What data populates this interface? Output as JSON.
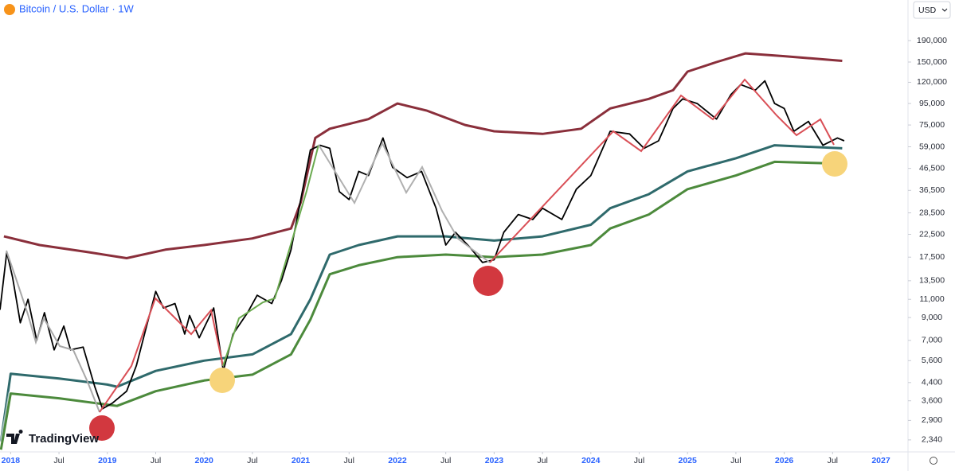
{
  "chart_data": {
    "type": "line",
    "title": "Bitcoin / U.S. Dollar · 1W",
    "currency": "USD",
    "watermark": "TradingView",
    "log_y": true,
    "grid": false,
    "xlim": [
      2017.89,
      2027.28
    ],
    "ylim": [
      2050,
      297000
    ],
    "xticks": [
      {
        "value": 2018,
        "label": "2018"
      },
      {
        "value": 2018.5,
        "label": "Jul"
      },
      {
        "value": 2019,
        "label": "2019"
      },
      {
        "value": 2019.5,
        "label": "Jul"
      },
      {
        "value": 2020,
        "label": "2020"
      },
      {
        "value": 2020.5,
        "label": "Jul"
      },
      {
        "value": 2021,
        "label": "2021"
      },
      {
        "value": 2021.5,
        "label": "Jul"
      },
      {
        "value": 2022,
        "label": "2022"
      },
      {
        "value": 2022.5,
        "label": "Jul"
      },
      {
        "value": 2023,
        "label": "2023"
      },
      {
        "value": 2023.5,
        "label": "Jul"
      },
      {
        "value": 2024,
        "label": "2024"
      },
      {
        "value": 2024.5,
        "label": "Jul"
      },
      {
        "value": 2025,
        "label": "2025"
      },
      {
        "value": 2025.5,
        "label": "Jul"
      },
      {
        "value": 2026,
        "label": "2026"
      },
      {
        "value": 2026.5,
        "label": "Jul"
      },
      {
        "value": 2027,
        "label": "2027"
      }
    ],
    "yticks": [
      {
        "value": 2340,
        "label": "2,340"
      },
      {
        "value": 2900,
        "label": "2,900"
      },
      {
        "value": 3600,
        "label": "3,600"
      },
      {
        "value": 4400,
        "label": "4,400"
      },
      {
        "value": 5600,
        "label": "5,600"
      },
      {
        "value": 7000,
        "label": "7,000"
      },
      {
        "value": 9000,
        "label": "9,000"
      },
      {
        "value": 11000,
        "label": "11,000"
      },
      {
        "value": 13500,
        "label": "13,500"
      },
      {
        "value": 17500,
        "label": "17,500"
      },
      {
        "value": 22500,
        "label": "22,500"
      },
      {
        "value": 28500,
        "label": "28,500"
      },
      {
        "value": 36500,
        "label": "36,500"
      },
      {
        "value": 46500,
        "label": "46,500"
      },
      {
        "value": 59000,
        "label": "59,000"
      },
      {
        "value": 75000,
        "label": "75,000"
      },
      {
        "value": 95000,
        "label": "95,000"
      },
      {
        "value": 120000,
        "label": "120,000"
      },
      {
        "value": 150000,
        "label": "150,000"
      },
      {
        "value": 190000,
        "label": "190,000"
      }
    ],
    "series": [
      {
        "color": "#8a2f3b",
        "width": 3,
        "x": [
          2017.93,
          2018.3,
          2018.8,
          2019.2,
          2019.6,
          2020.0,
          2020.5,
          2020.9,
          2021.0,
          2021.15,
          2021.3,
          2021.7,
          2022.0,
          2022.3,
          2022.7,
          2023.0,
          2023.5,
          2023.9,
          2024.2,
          2024.6,
          2024.85,
          2025.0,
          2025.3,
          2025.6,
          2026.0,
          2026.6
        ],
        "values": [
          22000,
          20000,
          18500,
          17300,
          19000,
          20000,
          21500,
          24000,
          32000,
          65000,
          72000,
          80000,
          95000,
          88000,
          75000,
          70000,
          68000,
          72000,
          90000,
          100000,
          110000,
          135000,
          150000,
          165000,
          160000,
          152000
        ]
      },
      {
        "color": "#2f6a6c",
        "width": 3,
        "x": [
          2017.9,
          2018.0,
          2018.5,
          2019.0,
          2019.1,
          2019.5,
          2020.0,
          2020.5,
          2020.9,
          2021.1,
          2021.3,
          2021.6,
          2022.0,
          2022.5,
          2023.0,
          2023.5,
          2024.0,
          2024.2,
          2024.6,
          2025.0,
          2025.5,
          2025.9,
          2026.6
        ],
        "values": [
          2300,
          4850,
          4600,
          4300,
          4200,
          5000,
          5600,
          6000,
          7500,
          11000,
          18000,
          20000,
          22000,
          22000,
          21000,
          22000,
          25000,
          30000,
          35000,
          45000,
          52000,
          60000,
          58000
        ]
      },
      {
        "color": "#4c8a3c",
        "width": 3,
        "x": [
          2017.9,
          2018.0,
          2018.5,
          2019.0,
          2019.1,
          2019.5,
          2020.0,
          2020.5,
          2020.9,
          2021.1,
          2021.3,
          2021.6,
          2022.0,
          2022.5,
          2023.0,
          2023.5,
          2024.0,
          2024.2,
          2024.6,
          2025.0,
          2025.5,
          2025.9,
          2026.6
        ],
        "values": [
          2100,
          3900,
          3700,
          3450,
          3400,
          4000,
          4500,
          4800,
          6000,
          8800,
          14500,
          16000,
          17500,
          18000,
          17500,
          18000,
          20000,
          24000,
          28000,
          37000,
          43000,
          50000,
          49000
        ]
      },
      {
        "color": "#000000",
        "width": 1.8,
        "x": [
          2017.89,
          2017.96,
          2018.02,
          2018.1,
          2018.18,
          2018.27,
          2018.35,
          2018.45,
          2018.55,
          2018.62,
          2018.75,
          2018.87,
          2018.95,
          2019.05,
          2019.2,
          2019.3,
          2019.4,
          2019.5,
          2019.58,
          2019.7,
          2019.8,
          2019.85,
          2019.95,
          2020.1,
          2020.2,
          2020.3,
          2020.45,
          2020.55,
          2020.7,
          2020.8,
          2020.9,
          2021.0,
          2021.1,
          2021.2,
          2021.3,
          2021.4,
          2021.5,
          2021.6,
          2021.7,
          2021.85,
          2021.95,
          2022.1,
          2022.25,
          2022.4,
          2022.5,
          2022.6,
          2022.75,
          2022.88,
          2023.0,
          2023.1,
          2023.25,
          2023.4,
          2023.5,
          2023.7,
          2023.85,
          2024.0,
          2024.2,
          2024.4,
          2024.55,
          2024.7,
          2024.85,
          2024.95,
          2025.1,
          2025.3,
          2025.45,
          2025.55,
          2025.7,
          2025.8,
          2025.9,
          2026.0,
          2026.1,
          2026.25,
          2026.4,
          2026.55,
          2026.62
        ],
        "values": [
          9800,
          18500,
          14000,
          8500,
          11000,
          7000,
          9500,
          6300,
          8200,
          6300,
          6500,
          4200,
          3300,
          3500,
          4000,
          5300,
          8000,
          12000,
          10000,
          10500,
          7500,
          9200,
          7200,
          10000,
          5000,
          7500,
          9500,
          11500,
          10500,
          13500,
          19000,
          33000,
          57000,
          60000,
          58000,
          36000,
          33000,
          45000,
          43000,
          65000,
          47000,
          42000,
          45000,
          30000,
          20000,
          23000,
          19500,
          16500,
          17000,
          23000,
          28000,
          26500,
          30000,
          26500,
          37000,
          43000,
          70000,
          68000,
          58000,
          63000,
          90000,
          100000,
          95000,
          80000,
          105000,
          117000,
          110000,
          122000,
          95000,
          90000,
          70000,
          78000,
          60000,
          65000,
          63000
        ]
      }
    ]
  }
}
